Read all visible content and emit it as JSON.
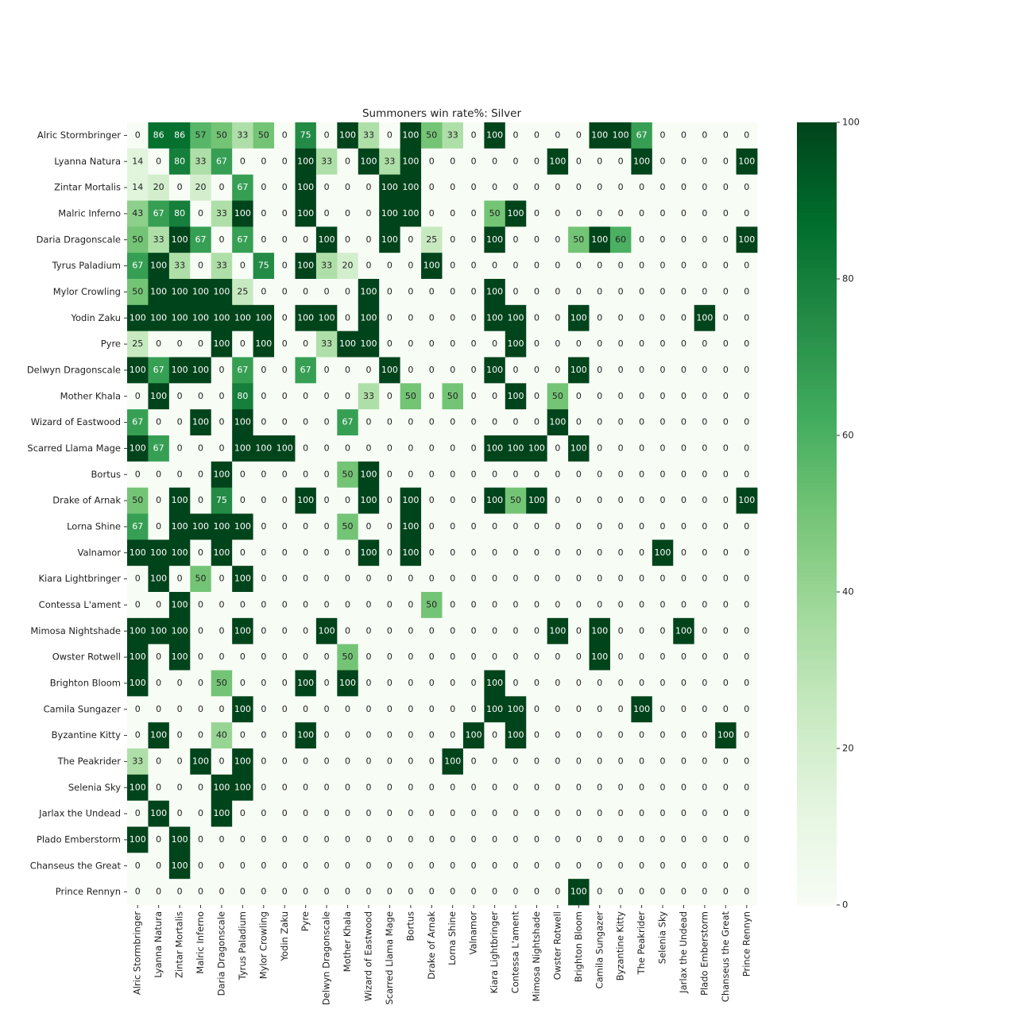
{
  "chart_data": {
    "type": "heatmap",
    "title": "Summoners win rate%: Silver",
    "categories": [
      "Alric Stormbringer",
      "Lyanna Natura",
      "Zintar Mortalis",
      "Malric Inferno",
      "Daria Dragonscale",
      "Tyrus Paladium",
      "Mylor Crowling",
      "Yodin Zaku",
      "Pyre",
      "Delwyn Dragonscale",
      "Mother Khala",
      "Wizard of Eastwood",
      "Scarred Llama Mage",
      "Bortus",
      "Drake of Arnak",
      "Lorna Shine",
      "Valnamor",
      "Kiara Lightbringer",
      "Contessa L'ament",
      "Mimosa Nightshade",
      "Owster Rotwell",
      "Brighton Bloom",
      "Camila Sungazer",
      "Byzantine Kitty",
      "The Peakrider",
      "Selenia Sky",
      "Jarlax the Undead",
      "Plado Emberstorm",
      "Chanseus the Great",
      "Prince Rennyn"
    ],
    "values": [
      [
        0,
        86,
        86,
        57,
        50,
        33,
        50,
        0,
        75,
        0,
        100,
        33,
        0,
        100,
        50,
        33,
        0,
        100,
        0,
        0,
        0,
        0,
        100,
        100,
        67,
        0,
        0,
        0,
        0,
        0
      ],
      [
        14,
        0,
        80,
        33,
        67,
        0,
        0,
        0,
        100,
        33,
        0,
        100,
        33,
        100,
        0,
        0,
        0,
        0,
        0,
        0,
        100,
        0,
        0,
        0,
        100,
        0,
        0,
        0,
        0,
        100
      ],
      [
        14,
        20,
        0,
        20,
        0,
        67,
        0,
        0,
        100,
        0,
        0,
        0,
        100,
        100,
        0,
        0,
        0,
        0,
        0,
        0,
        0,
        0,
        0,
        0,
        0,
        0,
        0,
        0,
        0,
        0
      ],
      [
        43,
        67,
        80,
        0,
        33,
        100,
        0,
        0,
        100,
        0,
        0,
        0,
        100,
        100,
        0,
        0,
        0,
        50,
        100,
        0,
        0,
        0,
        0,
        0,
        0,
        0,
        0,
        0,
        0,
        0
      ],
      [
        50,
        33,
        100,
        67,
        0,
        67,
        0,
        0,
        0,
        100,
        0,
        0,
        100,
        0,
        25,
        0,
        0,
        100,
        0,
        0,
        0,
        50,
        100,
        60,
        0,
        0,
        0,
        0,
        0,
        100
      ],
      [
        67,
        100,
        33,
        0,
        33,
        0,
        75,
        0,
        100,
        33,
        20,
        0,
        0,
        0,
        100,
        0,
        0,
        0,
        0,
        0,
        0,
        0,
        0,
        0,
        0,
        0,
        0,
        0,
        0,
        0
      ],
      [
        50,
        100,
        100,
        100,
        100,
        25,
        0,
        0,
        0,
        0,
        0,
        100,
        0,
        0,
        0,
        0,
        0,
        100,
        0,
        0,
        0,
        0,
        0,
        0,
        0,
        0,
        0,
        0,
        0,
        0
      ],
      [
        100,
        100,
        100,
        100,
        100,
        100,
        100,
        0,
        100,
        100,
        0,
        100,
        0,
        0,
        0,
        0,
        0,
        100,
        100,
        0,
        0,
        100,
        0,
        0,
        0,
        0,
        0,
        100,
        0,
        0
      ],
      [
        25,
        0,
        0,
        0,
        100,
        0,
        100,
        0,
        0,
        33,
        100,
        100,
        0,
        0,
        0,
        0,
        0,
        0,
        100,
        0,
        0,
        0,
        0,
        0,
        0,
        0,
        0,
        0,
        0,
        0
      ],
      [
        100,
        67,
        100,
        100,
        0,
        67,
        0,
        0,
        67,
        0,
        0,
        0,
        100,
        0,
        0,
        0,
        0,
        100,
        0,
        0,
        0,
        100,
        0,
        0,
        0,
        0,
        0,
        0,
        0,
        0
      ],
      [
        0,
        100,
        0,
        0,
        0,
        80,
        0,
        0,
        0,
        0,
        0,
        33,
        0,
        50,
        0,
        50,
        0,
        0,
        100,
        0,
        50,
        0,
        0,
        0,
        0,
        0,
        0,
        0,
        0,
        0
      ],
      [
        67,
        0,
        0,
        100,
        0,
        100,
        0,
        0,
        0,
        0,
        67,
        0,
        0,
        0,
        0,
        0,
        0,
        0,
        0,
        0,
        100,
        0,
        0,
        0,
        0,
        0,
        0,
        0,
        0,
        0
      ],
      [
        100,
        67,
        0,
        0,
        0,
        100,
        100,
        100,
        0,
        0,
        0,
        0,
        0,
        0,
        0,
        0,
        0,
        100,
        100,
        100,
        0,
        100,
        0,
        0,
        0,
        0,
        0,
        0,
        0,
        0
      ],
      [
        0,
        0,
        0,
        0,
        100,
        0,
        0,
        0,
        0,
        0,
        50,
        100,
        0,
        0,
        0,
        0,
        0,
        0,
        0,
        0,
        0,
        0,
        0,
        0,
        0,
        0,
        0,
        0,
        0,
        0
      ],
      [
        50,
        0,
        100,
        0,
        75,
        0,
        0,
        0,
        100,
        0,
        0,
        100,
        0,
        100,
        0,
        0,
        0,
        100,
        50,
        100,
        0,
        0,
        0,
        0,
        0,
        0,
        0,
        0,
        0,
        100
      ],
      [
        67,
        0,
        100,
        100,
        100,
        100,
        0,
        0,
        0,
        0,
        50,
        0,
        0,
        100,
        0,
        0,
        0,
        0,
        0,
        0,
        0,
        0,
        0,
        0,
        0,
        0,
        0,
        0,
        0,
        0
      ],
      [
        100,
        100,
        100,
        0,
        100,
        0,
        0,
        0,
        0,
        0,
        0,
        100,
        0,
        100,
        0,
        0,
        0,
        0,
        0,
        0,
        0,
        0,
        0,
        0,
        0,
        100,
        0,
        0,
        0,
        0
      ],
      [
        0,
        100,
        0,
        50,
        0,
        100,
        0,
        0,
        0,
        0,
        0,
        0,
        0,
        0,
        0,
        0,
        0,
        0,
        0,
        0,
        0,
        0,
        0,
        0,
        0,
        0,
        0,
        0,
        0,
        0
      ],
      [
        0,
        0,
        100,
        0,
        0,
        0,
        0,
        0,
        0,
        0,
        0,
        0,
        0,
        0,
        50,
        0,
        0,
        0,
        0,
        0,
        0,
        0,
        0,
        0,
        0,
        0,
        0,
        0,
        0,
        0
      ],
      [
        100,
        100,
        100,
        0,
        0,
        100,
        0,
        0,
        0,
        100,
        0,
        0,
        0,
        0,
        0,
        0,
        0,
        0,
        0,
        0,
        100,
        0,
        100,
        0,
        0,
        0,
        100,
        0,
        0,
        0
      ],
      [
        100,
        0,
        100,
        0,
        0,
        0,
        0,
        0,
        0,
        0,
        50,
        0,
        0,
        0,
        0,
        0,
        0,
        0,
        0,
        0,
        0,
        0,
        100,
        0,
        0,
        0,
        0,
        0,
        0,
        0
      ],
      [
        100,
        0,
        0,
        0,
        50,
        0,
        0,
        0,
        100,
        0,
        100,
        0,
        0,
        0,
        0,
        0,
        0,
        100,
        0,
        0,
        0,
        0,
        0,
        0,
        0,
        0,
        0,
        0,
        0,
        0
      ],
      [
        0,
        0,
        0,
        0,
        0,
        100,
        0,
        0,
        0,
        0,
        0,
        0,
        0,
        0,
        0,
        0,
        0,
        100,
        100,
        0,
        0,
        0,
        0,
        0,
        100,
        0,
        0,
        0,
        0,
        0
      ],
      [
        0,
        100,
        0,
        0,
        40,
        0,
        0,
        0,
        100,
        0,
        0,
        0,
        0,
        0,
        0,
        0,
        100,
        0,
        100,
        0,
        0,
        0,
        0,
        0,
        0,
        0,
        0,
        0,
        100,
        0
      ],
      [
        33,
        0,
        0,
        100,
        0,
        100,
        0,
        0,
        0,
        0,
        0,
        0,
        0,
        0,
        0,
        100,
        0,
        0,
        0,
        0,
        0,
        0,
        0,
        0,
        0,
        0,
        0,
        0,
        0,
        0
      ],
      [
        100,
        0,
        0,
        0,
        100,
        100,
        0,
        0,
        0,
        0,
        0,
        0,
        0,
        0,
        0,
        0,
        0,
        0,
        0,
        0,
        0,
        0,
        0,
        0,
        0,
        0,
        0,
        0,
        0,
        0
      ],
      [
        0,
        100,
        0,
        0,
        100,
        0,
        0,
        0,
        0,
        0,
        0,
        0,
        0,
        0,
        0,
        0,
        0,
        0,
        0,
        0,
        0,
        0,
        0,
        0,
        0,
        0,
        0,
        0,
        0,
        0
      ],
      [
        100,
        0,
        100,
        0,
        0,
        0,
        0,
        0,
        0,
        0,
        0,
        0,
        0,
        0,
        0,
        0,
        0,
        0,
        0,
        0,
        0,
        0,
        0,
        0,
        0,
        0,
        0,
        0,
        0,
        0
      ],
      [
        0,
        0,
        100,
        0,
        0,
        0,
        0,
        0,
        0,
        0,
        0,
        0,
        0,
        0,
        0,
        0,
        0,
        0,
        0,
        0,
        0,
        0,
        0,
        0,
        0,
        0,
        0,
        0,
        0,
        0
      ],
      [
        0,
        0,
        0,
        0,
        0,
        0,
        0,
        0,
        0,
        0,
        0,
        0,
        0,
        0,
        0,
        0,
        0,
        0,
        0,
        0,
        0,
        100,
        0,
        0,
        0,
        0,
        0,
        0,
        0,
        0
      ]
    ],
    "zlim": [
      0,
      100
    ],
    "zticks": [
      0,
      20,
      40,
      60,
      80,
      100
    ],
    "colormap": [
      "#f7fcf5",
      "#e5f5e0",
      "#c7e9c0",
      "#a1d99b",
      "#74c476",
      "#41ab5d",
      "#238b45",
      "#006d2c",
      "#00441b"
    ]
  }
}
